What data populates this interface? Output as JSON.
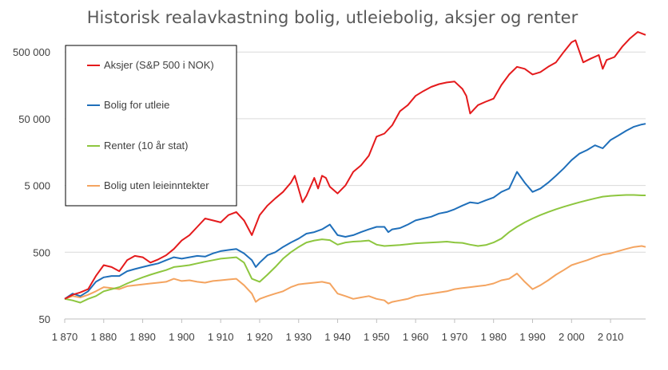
{
  "chart_data": {
    "type": "line",
    "title": "Historisk realavkastning bolig, utleiebolig, aksjer og renter",
    "xlabel": "",
    "ylabel": "",
    "y_scale": "log",
    "ylim": [
      50,
      1000000
    ],
    "xlim": [
      1870,
      2019
    ],
    "grid": "horizontal",
    "legend_position": "top-left",
    "x_tick_labels": [
      "1 870",
      "1 880",
      "1 890",
      "1 900",
      "1 910",
      "1 920",
      "1 930",
      "1 940",
      "1 950",
      "1 960",
      "1 970",
      "1 980",
      "1 990",
      "2 000",
      "2 010"
    ],
    "x_tick_values": [
      1870,
      1880,
      1890,
      1900,
      1910,
      1920,
      1930,
      1940,
      1950,
      1960,
      1970,
      1980,
      1990,
      2000,
      2010
    ],
    "y_tick_labels": [
      "50",
      "500",
      "5 000",
      "50 000",
      "500 000"
    ],
    "y_tick_values": [
      50,
      500,
      5000,
      50000,
      500000
    ],
    "series": [
      {
        "name": "Aksjer (S&P 500 i NOK)",
        "color": "#e41a1c",
        "x": [
          1870,
          1872,
          1874,
          1876,
          1878,
          1880,
          1882,
          1884,
          1886,
          1888,
          1890,
          1892,
          1894,
          1896,
          1898,
          1900,
          1902,
          1904,
          1906,
          1908,
          1910,
          1912,
          1914,
          1916,
          1918,
          1920,
          1922,
          1924,
          1926,
          1928,
          1929,
          1931,
          1932,
          1934,
          1935,
          1936,
          1937,
          1938,
          1940,
          1942,
          1944,
          1946,
          1948,
          1950,
          1952,
          1954,
          1956,
          1958,
          1960,
          1962,
          1964,
          1966,
          1968,
          1970,
          1972,
          1973,
          1974,
          1976,
          1978,
          1980,
          1982,
          1984,
          1986,
          1988,
          1990,
          1992,
          1994,
          1996,
          1998,
          2000,
          2001,
          2003,
          2005,
          2007,
          2008,
          2009,
          2011,
          2013,
          2015,
          2017,
          2018,
          2019
        ],
        "y": [
          100,
          115,
          125,
          140,
          220,
          320,
          300,
          260,
          380,
          440,
          420,
          350,
          390,
          450,
          560,
          750,
          900,
          1200,
          1600,
          1500,
          1400,
          1800,
          2000,
          1500,
          900,
          1800,
          2500,
          3200,
          4000,
          5500,
          7000,
          2800,
          3500,
          6500,
          4500,
          7000,
          6500,
          4800,
          3800,
          5000,
          8000,
          10000,
          14000,
          27000,
          30000,
          40000,
          65000,
          80000,
          110000,
          130000,
          150000,
          165000,
          175000,
          180000,
          140000,
          110000,
          60000,
          80000,
          90000,
          100000,
          160000,
          230000,
          300000,
          280000,
          230000,
          250000,
          300000,
          350000,
          500000,
          700000,
          750000,
          350000,
          400000,
          450000,
          280000,
          380000,
          420000,
          600000,
          800000,
          1000000,
          950000,
          900000
        ]
      },
      {
        "name": "Bolig for utleie",
        "color": "#1f6fba",
        "x": [
          1870,
          1872,
          1874,
          1876,
          1878,
          1880,
          1882,
          1884,
          1886,
          1888,
          1890,
          1892,
          1894,
          1896,
          1898,
          1900,
          1902,
          1904,
          1906,
          1908,
          1910,
          1912,
          1914,
          1916,
          1918,
          1919,
          1920,
          1922,
          1924,
          1926,
          1928,
          1930,
          1932,
          1934,
          1936,
          1938,
          1940,
          1942,
          1944,
          1946,
          1948,
          1950,
          1952,
          1953,
          1954,
          1956,
          1958,
          1960,
          1962,
          1964,
          1966,
          1968,
          1970,
          1972,
          1974,
          1976,
          1978,
          1980,
          1982,
          1984,
          1986,
          1988,
          1990,
          1992,
          1994,
          1996,
          1998,
          2000,
          2002,
          2004,
          2006,
          2008,
          2010,
          2012,
          2014,
          2016,
          2018,
          2019
        ],
        "y": [
          100,
          120,
          110,
          130,
          180,
          210,
          220,
          220,
          260,
          280,
          300,
          320,
          340,
          380,
          420,
          400,
          420,
          440,
          430,
          480,
          520,
          540,
          560,
          480,
          380,
          300,
          350,
          450,
          500,
          600,
          700,
          800,
          950,
          1000,
          1100,
          1300,
          900,
          850,
          900,
          1000,
          1100,
          1200,
          1200,
          1000,
          1100,
          1150,
          1300,
          1500,
          1600,
          1700,
          1900,
          2000,
          2200,
          2500,
          2800,
          2700,
          3000,
          3300,
          4000,
          4500,
          8000,
          5500,
          4000,
          4500,
          5500,
          7000,
          9000,
          12000,
          15000,
          17000,
          20000,
          18000,
          24000,
          28000,
          33000,
          38000,
          41000,
          42000
        ]
      },
      {
        "name": "Renter (10 år stat)",
        "color": "#8dc63f",
        "x": [
          1870,
          1872,
          1874,
          1876,
          1878,
          1880,
          1882,
          1884,
          1886,
          1888,
          1890,
          1892,
          1894,
          1896,
          1898,
          1900,
          1902,
          1904,
          1906,
          1908,
          1910,
          1912,
          1914,
          1916,
          1918,
          1920,
          1922,
          1924,
          1926,
          1928,
          1930,
          1932,
          1934,
          1936,
          1938,
          1940,
          1942,
          1944,
          1946,
          1948,
          1950,
          1952,
          1954,
          1956,
          1958,
          1960,
          1962,
          1964,
          1966,
          1968,
          1970,
          1972,
          1974,
          1976,
          1978,
          1980,
          1982,
          1984,
          1986,
          1988,
          1990,
          1992,
          1994,
          1996,
          1998,
          2000,
          2002,
          2004,
          2006,
          2008,
          2010,
          2012,
          2014,
          2016,
          2018,
          2019
        ],
        "y": [
          100,
          95,
          88,
          100,
          110,
          130,
          140,
          150,
          170,
          190,
          210,
          230,
          250,
          270,
          300,
          310,
          320,
          340,
          360,
          380,
          400,
          410,
          420,
          350,
          200,
          180,
          230,
          300,
          400,
          500,
          600,
          700,
          750,
          780,
          760,
          650,
          700,
          720,
          730,
          750,
          650,
          620,
          630,
          640,
          660,
          680,
          690,
          700,
          710,
          720,
          700,
          690,
          650,
          620,
          640,
          700,
          800,
          1000,
          1200,
          1400,
          1600,
          1800,
          2000,
          2200,
          2400,
          2600,
          2800,
          3000,
          3200,
          3400,
          3500,
          3550,
          3600,
          3600,
          3550,
          3550
        ]
      },
      {
        "name": "Bolig uten leieinntekter",
        "color": "#f4a460",
        "x": [
          1870,
          1872,
          1874,
          1876,
          1878,
          1880,
          1882,
          1884,
          1886,
          1888,
          1890,
          1892,
          1894,
          1896,
          1898,
          1900,
          1902,
          1904,
          1906,
          1908,
          1910,
          1912,
          1914,
          1916,
          1918,
          1919,
          1920,
          1922,
          1924,
          1926,
          1928,
          1930,
          1932,
          1934,
          1936,
          1938,
          1940,
          1942,
          1944,
          1946,
          1948,
          1950,
          1952,
          1953,
          1954,
          1956,
          1958,
          1960,
          1962,
          1964,
          1966,
          1968,
          1970,
          1972,
          1974,
          1976,
          1978,
          1980,
          1982,
          1984,
          1986,
          1988,
          1990,
          1992,
          1994,
          1996,
          1998,
          2000,
          2002,
          2004,
          2006,
          2008,
          2010,
          2012,
          2014,
          2016,
          2018,
          2019
        ],
        "y": [
          100,
          110,
          105,
          115,
          130,
          150,
          145,
          140,
          155,
          160,
          165,
          170,
          175,
          180,
          200,
          185,
          190,
          180,
          175,
          185,
          190,
          195,
          200,
          160,
          120,
          90,
          100,
          110,
          120,
          130,
          150,
          165,
          170,
          175,
          180,
          170,
          120,
          110,
          100,
          105,
          110,
          100,
          95,
          85,
          90,
          95,
          100,
          110,
          115,
          120,
          125,
          130,
          140,
          145,
          150,
          155,
          160,
          170,
          190,
          200,
          240,
          180,
          140,
          160,
          190,
          230,
          270,
          320,
          350,
          380,
          420,
          460,
          480,
          520,
          560,
          600,
          620,
          600
        ]
      }
    ]
  }
}
